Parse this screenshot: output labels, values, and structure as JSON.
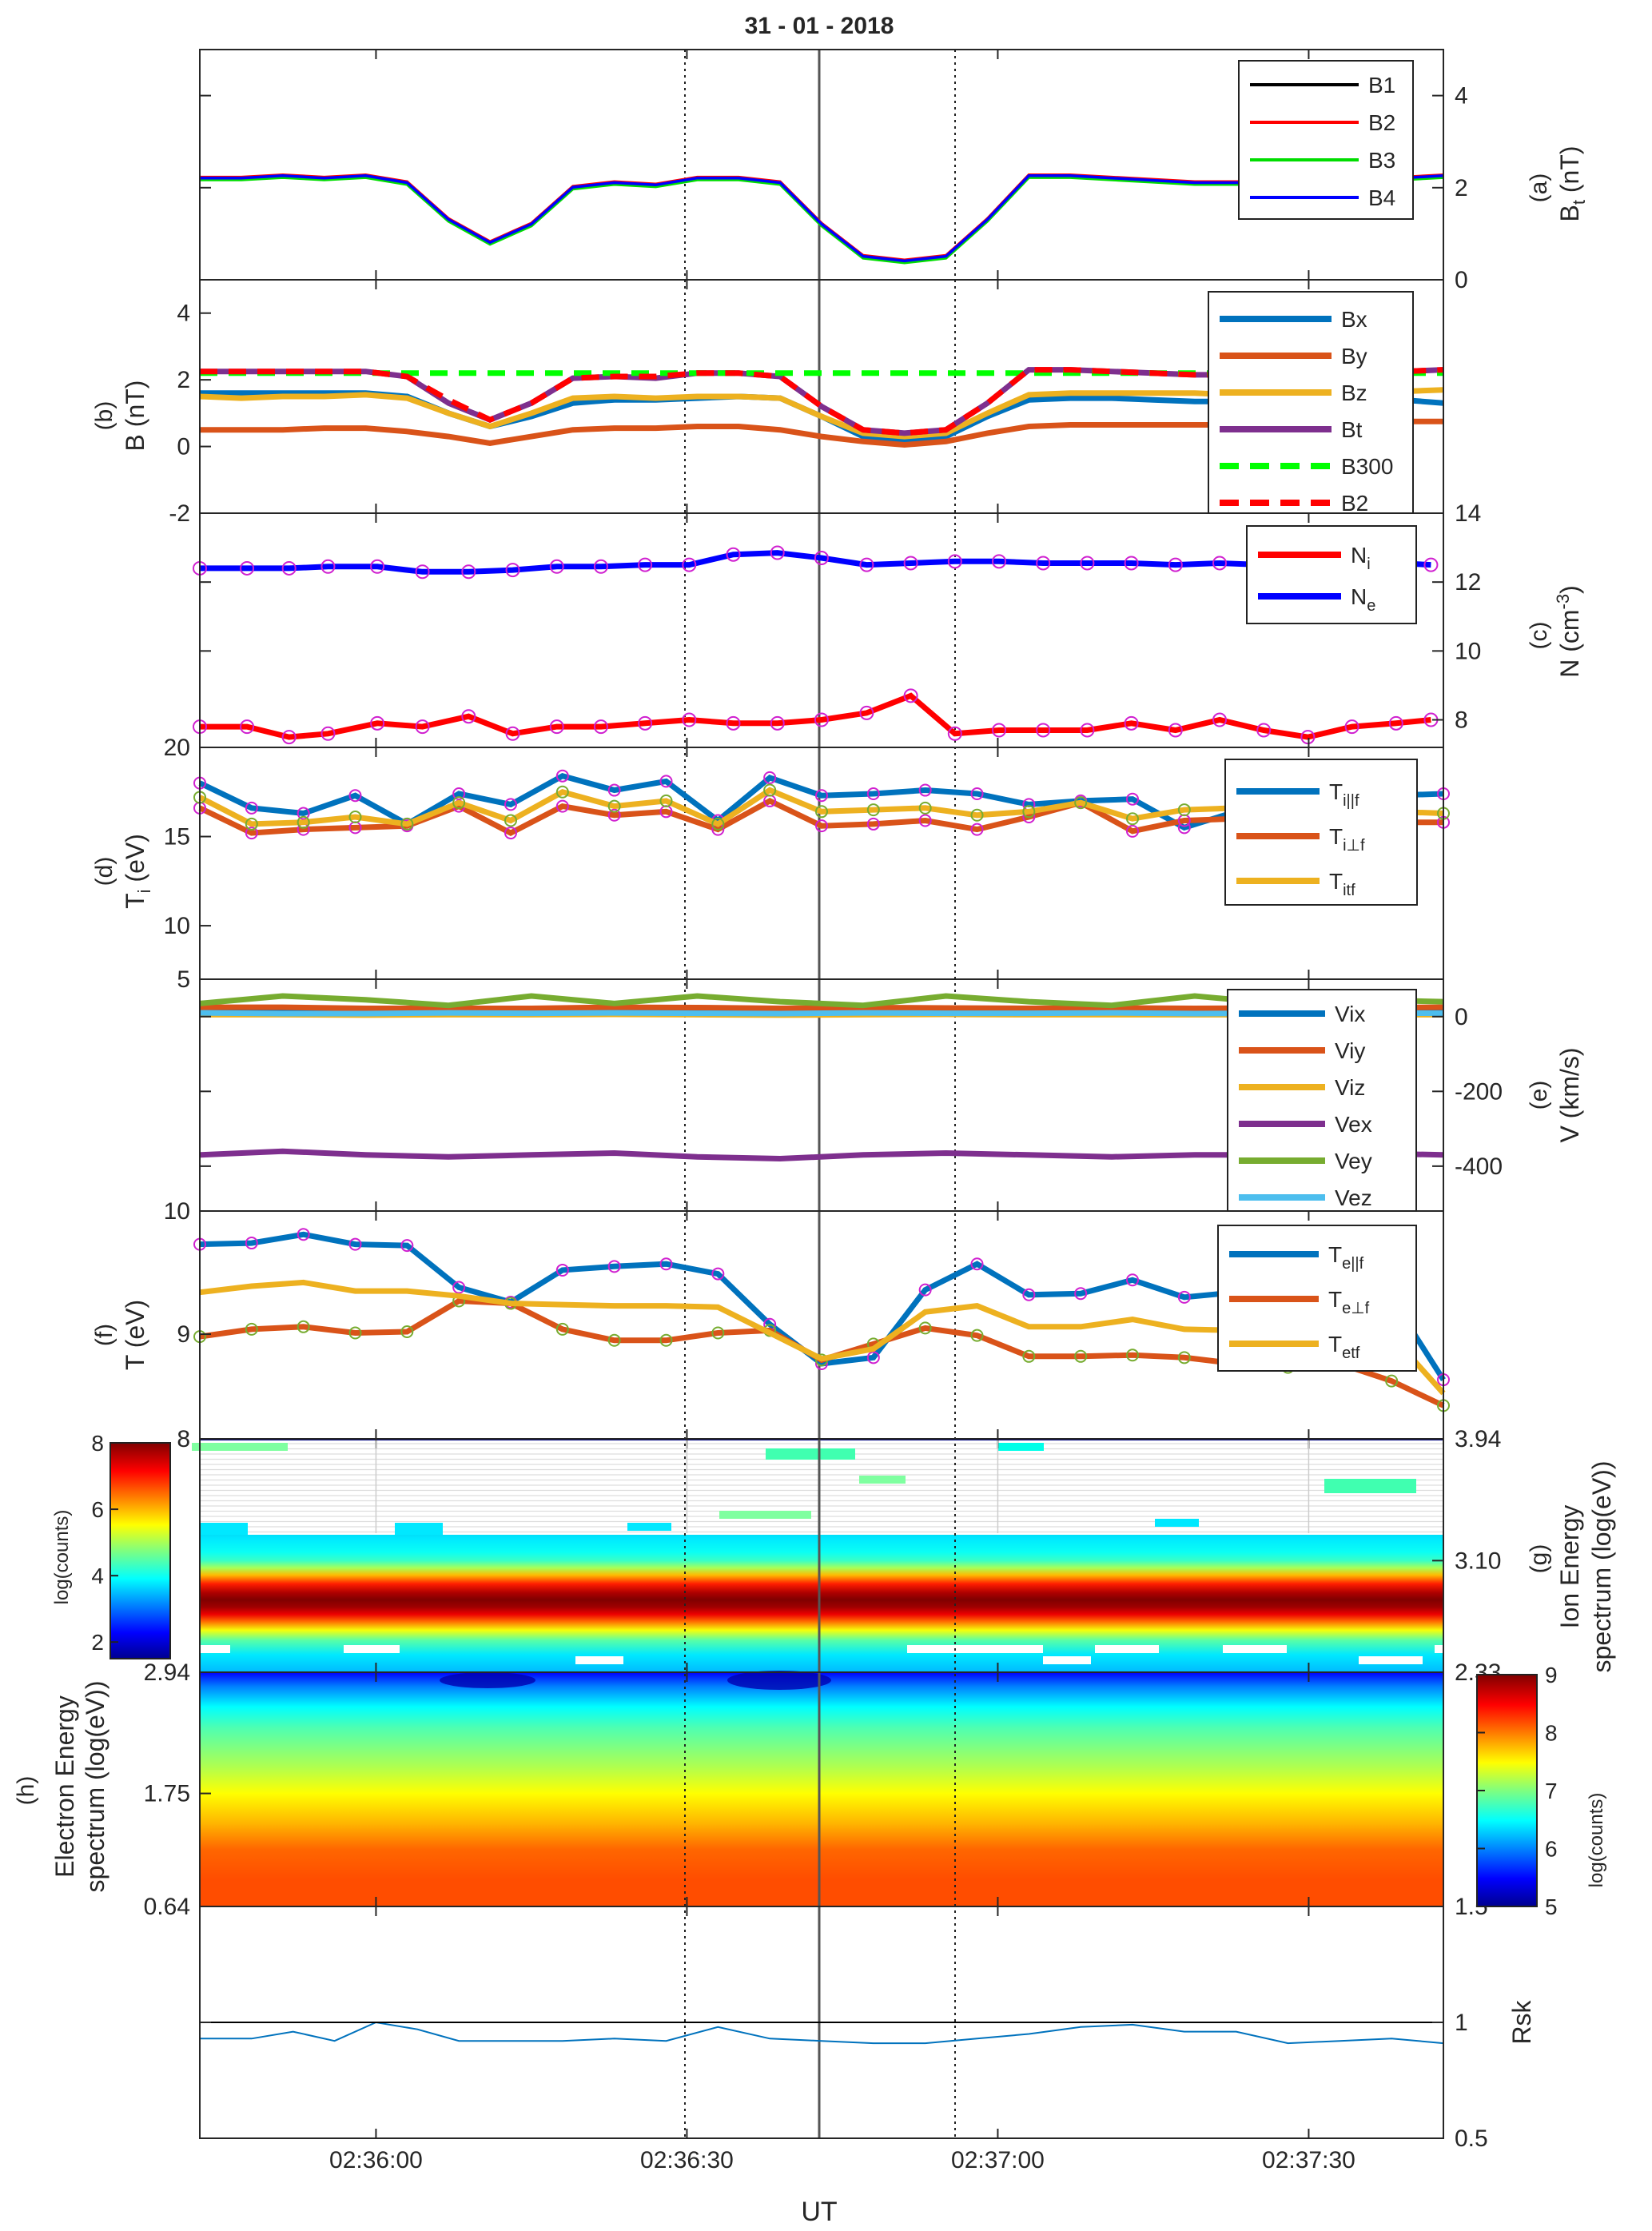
{
  "title": "31 - 01 - 2018",
  "xlabel": "UT",
  "time_ticks": [
    "02:36:00",
    "02:36:30",
    "02:37:00",
    "02:37:30"
  ],
  "time_range": [
    "02:35:43",
    "02:37:43"
  ],
  "panels": {
    "a": {
      "label": "(a)",
      "ylabel": "B",
      "ylabel_sub": "t",
      "ylabel_unit": " (nT)",
      "right_ticks": [
        "0",
        "2",
        "4"
      ]
    },
    "b": {
      "label": "(b)",
      "ylabel": "B (nT)",
      "left_ticks": [
        "-2",
        "0",
        "2",
        "4"
      ]
    },
    "c": {
      "label": "(c)",
      "ylabel": "N (cm",
      "ylabel_sup": "-3",
      "ylabel_end": ")",
      "right_ticks": [
        "8",
        "10",
        "12",
        "14"
      ]
    },
    "d": {
      "label": "(d)",
      "ylabel": "T",
      "ylabel_sub": "i",
      "ylabel_unit": " (eV)",
      "left_ticks": [
        "10",
        "15",
        "20"
      ]
    },
    "e": {
      "label": "(e)",
      "ylabel": "V (km/s)",
      "left_tick_top": "5",
      "right_ticks": [
        "-400",
        "-200",
        "0"
      ]
    },
    "f": {
      "label": "(f)",
      "ylabel": "T (eV)",
      "left_ticks": [
        "9",
        "10"
      ]
    },
    "g": {
      "label": "(g)",
      "ylabel1": "Ion Energy",
      "ylabel2": "spectrum (log(eV))",
      "right_ticks": [
        "2.33",
        "3.10",
        "3.94"
      ],
      "cbar_ticks": [
        "2",
        "4",
        "6",
        "8"
      ],
      "cbar_label": "log(counts)",
      "cbar_top": "8"
    },
    "h": {
      "label": "(h)",
      "ylabel1": "Electron Energy",
      "ylabel2": "spectrum (log(eV))",
      "left_ticks": [
        "0.64",
        "1.75",
        "2.94"
      ],
      "cbar_ticks": [
        "5",
        "6",
        "7",
        "8",
        "9"
      ],
      "cbar_label": "log(counts)"
    },
    "i": {
      "ylabel": "Rsk",
      "right_ticks": [
        "0.5",
        "1",
        "1.5"
      ]
    }
  },
  "chart_data": [
    {
      "panel": "a",
      "type": "line",
      "ylim": [
        0,
        5
      ],
      "xunit": "seconds after 02:35:43",
      "legend_position": "top-right",
      "series": [
        {
          "name": "B1",
          "color": "#000000"
        },
        {
          "name": "B2",
          "color": "#ff0000"
        },
        {
          "name": "B3",
          "color": "#00dd00"
        },
        {
          "name": "B4",
          "color": "#0000ff"
        }
      ],
      "x": [
        0,
        4,
        8,
        12,
        16,
        20,
        24,
        28,
        32,
        36,
        40,
        44,
        48,
        52,
        56,
        60,
        64,
        68,
        72,
        76,
        80,
        84,
        88,
        92,
        96,
        100,
        104,
        108,
        112,
        116,
        120
      ],
      "values": [
        2.2,
        2.2,
        2.25,
        2.2,
        2.25,
        2.1,
        1.3,
        0.8,
        1.2,
        2.0,
        2.1,
        2.05,
        2.2,
        2.2,
        2.1,
        1.2,
        0.5,
        0.4,
        0.5,
        1.3,
        2.25,
        2.25,
        2.2,
        2.15,
        2.1,
        2.1,
        2.1,
        2.1,
        2.15,
        2.2,
        2.25
      ]
    },
    {
      "panel": "b",
      "type": "line",
      "ylim": [
        -2,
        5
      ],
      "series": [
        {
          "name": "Bx",
          "color": "#0072bd",
          "dash": false,
          "values": [
            1.6,
            1.6,
            1.6,
            1.6,
            1.6,
            1.5,
            1.0,
            0.6,
            0.9,
            1.3,
            1.4,
            1.4,
            1.45,
            1.5,
            1.45,
            0.9,
            0.3,
            0.2,
            0.3,
            0.9,
            1.4,
            1.45,
            1.45,
            1.4,
            1.35,
            1.35,
            1.3,
            1.35,
            1.4,
            1.4,
            1.3
          ]
        },
        {
          "name": "By",
          "color": "#d95319",
          "dash": false,
          "values": [
            0.5,
            0.5,
            0.5,
            0.55,
            0.55,
            0.45,
            0.3,
            0.1,
            0.3,
            0.5,
            0.55,
            0.55,
            0.6,
            0.6,
            0.5,
            0.3,
            0.15,
            0.05,
            0.15,
            0.4,
            0.6,
            0.65,
            0.65,
            0.65,
            0.65,
            0.65,
            0.65,
            0.7,
            0.7,
            0.75,
            0.75
          ]
        },
        {
          "name": "Bz",
          "color": "#edb120",
          "dash": false,
          "values": [
            1.5,
            1.45,
            1.5,
            1.5,
            1.55,
            1.45,
            1.0,
            0.6,
            1.0,
            1.45,
            1.5,
            1.45,
            1.5,
            1.5,
            1.45,
            0.9,
            0.4,
            0.3,
            0.4,
            1.0,
            1.55,
            1.6,
            1.6,
            1.6,
            1.6,
            1.55,
            1.55,
            1.6,
            1.6,
            1.65,
            1.7
          ]
        },
        {
          "name": "Bt",
          "color": "#7e2f8e",
          "dash": false,
          "values": [
            2.25,
            2.25,
            2.25,
            2.25,
            2.25,
            2.1,
            1.3,
            0.8,
            1.3,
            2.05,
            2.1,
            2.05,
            2.2,
            2.2,
            2.1,
            1.2,
            0.5,
            0.4,
            0.5,
            1.3,
            2.3,
            2.3,
            2.25,
            2.2,
            2.15,
            2.15,
            2.15,
            2.15,
            2.2,
            2.25,
            2.3
          ]
        },
        {
          "name": "B300",
          "color": "#00ff00",
          "dash": true,
          "values": [
            2.2,
            2.2,
            2.2,
            2.2,
            2.2,
            2.2,
            2.2,
            2.2,
            2.2,
            2.2,
            2.2,
            2.2,
            2.2,
            2.2,
            2.2,
            2.2,
            2.2,
            2.2,
            2.2,
            2.2,
            2.2,
            2.2,
            2.2,
            2.2,
            2.2,
            2.2,
            2.2,
            2.2,
            2.2,
            2.2,
            2.2
          ]
        },
        {
          "name": "B2",
          "color": "#ff0000",
          "dash": true,
          "values": [
            2.25,
            2.25,
            2.25,
            2.25,
            2.25,
            2.1,
            1.4,
            0.8,
            1.3,
            2.05,
            2.1,
            2.1,
            2.2,
            2.2,
            2.1,
            1.2,
            0.5,
            0.4,
            0.5,
            1.3,
            2.3,
            2.3,
            2.25,
            2.2,
            2.15,
            2.15,
            2.15,
            2.15,
            2.2,
            2.25,
            2.3
          ]
        }
      ],
      "x": [
        0,
        4,
        8,
        12,
        16,
        20,
        24,
        28,
        32,
        36,
        40,
        44,
        48,
        52,
        56,
        60,
        64,
        68,
        72,
        76,
        80,
        84,
        88,
        92,
        96,
        100,
        104,
        108,
        112,
        116,
        120
      ]
    },
    {
      "panel": "c",
      "type": "line",
      "ylim": [
        7.2,
        14
      ],
      "series": [
        {
          "name": "Ni",
          "label": "N",
          "sub": "i",
          "color": "#ff0000",
          "values": [
            7.8,
            7.8,
            7.5,
            7.6,
            7.9,
            7.8,
            8.1,
            7.6,
            7.8,
            7.8,
            7.9,
            8.0,
            7.9,
            7.9,
            8.0,
            8.2,
            8.7,
            7.6,
            7.7,
            7.7,
            7.7,
            7.9,
            7.7,
            8.0,
            7.7,
            7.5,
            7.8,
            7.9,
            8.0,
            7.7,
            7.5,
            7.9
          ]
        },
        {
          "name": "Ne",
          "label": "N",
          "sub": "e",
          "color": "#0000ff",
          "values": [
            12.4,
            12.4,
            12.4,
            12.45,
            12.45,
            12.3,
            12.3,
            12.35,
            12.45,
            12.45,
            12.5,
            12.5,
            12.8,
            12.85,
            12.7,
            12.5,
            12.55,
            12.6,
            12.6,
            12.55,
            12.55,
            12.55,
            12.5,
            12.55,
            12.5,
            12.45,
            12.5,
            12.55,
            12.5,
            12.55,
            12.6,
            12.55
          ]
        }
      ],
      "x": [
        0,
        4.6,
        8.7,
        12.5,
        17.3,
        21.7,
        26.2,
        30.5,
        34.8,
        39.1,
        43.4,
        47.7,
        52.0,
        56.3,
        60.6,
        65.0,
        69.3,
        73.6,
        77.9,
        82.2,
        86.5,
        90.8,
        95.1,
        99.4,
        103.7,
        108.0,
        112.3,
        116.6,
        120.9,
        120.9,
        120.9,
        120.9
      ]
    },
    {
      "panel": "d",
      "type": "line",
      "ylim": [
        7,
        20
      ],
      "series": [
        {
          "name": "Ti||f",
          "label": "T",
          "sub": "i||f",
          "color": "#0072bd",
          "values": [
            18.0,
            16.6,
            16.3,
            17.3,
            15.7,
            17.4,
            16.8,
            18.4,
            17.6,
            18.1,
            15.9,
            18.3,
            17.3,
            17.4,
            17.6,
            17.4,
            16.8,
            17.0,
            17.1,
            15.5,
            16.4,
            16.5,
            17.2,
            17.3,
            17.4
          ]
        },
        {
          "name": "Ti⊥f",
          "label": "T",
          "sub": "i⊥f",
          "color": "#d95319",
          "values": [
            16.6,
            15.2,
            15.4,
            15.5,
            15.6,
            16.7,
            15.2,
            16.7,
            16.2,
            16.4,
            15.4,
            17.0,
            15.6,
            15.7,
            15.9,
            15.4,
            16.1,
            16.9,
            15.3,
            15.9,
            16.0,
            16.1,
            15.8,
            15.8,
            15.8
          ]
        },
        {
          "name": "Titf",
          "label": "T",
          "sub": "itf",
          "color": "#edb120",
          "values": [
            17.2,
            15.7,
            15.8,
            16.1,
            15.7,
            16.9,
            15.9,
            17.5,
            16.7,
            17.0,
            15.7,
            17.6,
            16.4,
            16.5,
            16.6,
            16.2,
            16.4,
            16.9,
            16.0,
            16.5,
            16.6,
            16.5,
            16.4,
            16.4,
            16.3
          ]
        }
      ],
      "x": [
        0,
        5,
        10,
        15,
        20,
        25,
        30,
        35,
        40,
        45,
        50,
        55,
        60,
        65,
        70,
        75,
        80,
        85,
        90,
        95,
        100,
        105,
        110,
        115,
        120
      ]
    },
    {
      "panel": "e",
      "type": "line",
      "ylim": [
        -520,
        100
      ],
      "series": [
        {
          "name": "Vix",
          "color": "#0072bd",
          "values": [
            15,
            15,
            12,
            14,
            10,
            12,
            13,
            14,
            12,
            12,
            10,
            12,
            13,
            12,
            14,
            13
          ]
        },
        {
          "name": "Viy",
          "color": "#d95319",
          "values": [
            25,
            25,
            22,
            22,
            22,
            25,
            24,
            22,
            24,
            23,
            22,
            23,
            22,
            23,
            24,
            25
          ]
        },
        {
          "name": "Viz",
          "color": "#edb120",
          "values": [
            5,
            5,
            4,
            5,
            5,
            6,
            5,
            4,
            5,
            6,
            5,
            5,
            5,
            5,
            5,
            5
          ]
        },
        {
          "name": "Vex",
          "color": "#7e2f8e",
          "values": [
            -370,
            -360,
            -370,
            -375,
            -370,
            -365,
            -375,
            -380,
            -370,
            -365,
            -370,
            -375,
            -370,
            -370,
            -365,
            -370
          ]
        },
        {
          "name": "Vey",
          "color": "#77ac30",
          "values": [
            35,
            55,
            45,
            30,
            55,
            35,
            55,
            40,
            30,
            55,
            40,
            30,
            55,
            35,
            45,
            40
          ]
        },
        {
          "name": "Vez",
          "color": "#4dbeee",
          "values": [
            10,
            8,
            8,
            10,
            9,
            10,
            9,
            8,
            10,
            9,
            9,
            10,
            8,
            9,
            10,
            9
          ]
        }
      ],
      "x": [
        0,
        8,
        16,
        24,
        32,
        40,
        48,
        56,
        64,
        72,
        80,
        88,
        96,
        104,
        112,
        120
      ]
    },
    {
      "panel": "f",
      "type": "line",
      "ylim": [
        8.15,
        10
      ],
      "series": [
        {
          "name": "Te||f",
          "label": "T",
          "sub": "e||f",
          "color": "#0072bd",
          "values": [
            9.73,
            9.74,
            9.81,
            9.73,
            9.72,
            9.38,
            9.26,
            9.52,
            9.55,
            9.57,
            9.49,
            9.08,
            8.76,
            8.81,
            9.36,
            9.57,
            9.32,
            9.33,
            9.44,
            9.3,
            9.34,
            9.28,
            9.37,
            9.29,
            8.63
          ]
        },
        {
          "name": "Te⊥f",
          "label": "T",
          "sub": "e⊥f",
          "color": "#d95319",
          "values": [
            8.98,
            9.04,
            9.06,
            9.01,
            9.02,
            9.27,
            9.25,
            9.04,
            8.95,
            8.95,
            9.01,
            9.03,
            8.79,
            8.92,
            9.05,
            8.99,
            8.82,
            8.82,
            8.83,
            8.81,
            8.76,
            8.73,
            8.76,
            8.62,
            8.42
          ]
        },
        {
          "name": "Tetf",
          "label": "T",
          "sub": "etf",
          "color": "#edb120",
          "values": [
            9.34,
            9.39,
            9.42,
            9.35,
            9.35,
            9.31,
            9.25,
            9.24,
            9.23,
            9.23,
            9.22,
            9.01,
            8.8,
            8.88,
            9.18,
            9.23,
            9.06,
            9.06,
            9.12,
            9.04,
            9.03,
            8.99,
            9.07,
            8.99,
            8.52
          ]
        }
      ],
      "x": [
        0,
        5,
        10,
        15,
        20,
        25,
        30,
        35,
        40,
        45,
        50,
        55,
        60,
        65,
        70,
        75,
        80,
        85,
        90,
        95,
        100,
        105,
        110,
        115,
        120
      ],
      "marker_indices": [
        0,
        1,
        2,
        3,
        4,
        5,
        6,
        7,
        8,
        9,
        10,
        11,
        12,
        13,
        14,
        15,
        16,
        17,
        18,
        19,
        20,
        21,
        22,
        23
      ]
    },
    {
      "panel": "g",
      "type": "heatmap",
      "ylim": [
        2.33,
        3.94
      ],
      "clim": [
        1.5,
        8
      ],
      "profile_energy": [
        2.33,
        2.45,
        2.55,
        2.62,
        2.68,
        2.73,
        2.78,
        2.83,
        2.88,
        2.94,
        3.0,
        3.05,
        3.1,
        3.16,
        3.25,
        3.94
      ],
      "profile_counts": [
        3.5,
        3.8,
        4.5,
        5.5,
        6.5,
        7.3,
        7.8,
        8.0,
        7.7,
        7.0,
        6.0,
        5.0,
        4.3,
        4.0,
        3.8,
        1.5
      ]
    },
    {
      "panel": "h",
      "type": "heatmap",
      "ylim": [
        0.64,
        2.94
      ],
      "clim": [
        5,
        9
      ],
      "profile_energy": [
        0.64,
        0.9,
        1.2,
        1.45,
        1.75,
        2.0,
        2.2,
        2.4,
        2.6,
        2.8,
        2.94
      ],
      "profile_counts": [
        8.2,
        8.2,
        8.1,
        7.8,
        7.5,
        7.2,
        7.0,
        6.8,
        6.5,
        6.0,
        5.5
      ]
    },
    {
      "panel": "i",
      "type": "line",
      "ylim": [
        0.5,
        1.5
      ],
      "series": [
        {
          "name": "Rsk",
          "color": "#0072bd",
          "values": [
            0.93,
            0.93,
            0.96,
            0.92,
            1.0,
            0.97,
            0.92,
            0.92,
            0.92,
            0.93,
            0.92,
            0.98,
            0.93,
            0.92,
            0.91,
            0.91,
            0.93,
            0.95,
            0.98,
            0.99,
            0.96,
            0.96,
            0.91,
            0.92,
            0.93,
            0.91
          ]
        }
      ],
      "x": [
        0,
        5,
        9,
        13,
        17,
        21,
        25,
        30,
        35,
        40,
        45,
        50,
        55,
        60,
        65,
        70,
        75,
        80,
        85,
        90,
        95,
        100,
        105,
        110,
        115,
        120
      ],
      "reference_line": 1
    }
  ],
  "colors": {
    "axis": "#262626",
    "grid": "#dcdcdc",
    "cursor_line": "#555555"
  }
}
